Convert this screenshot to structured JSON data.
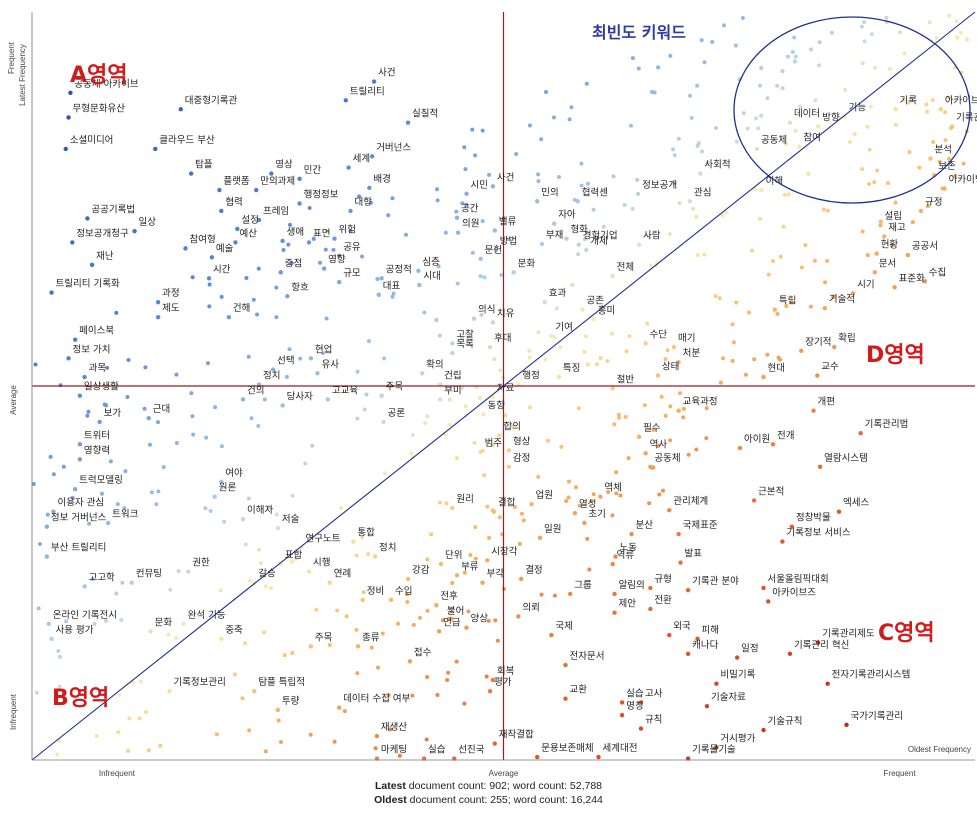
{
  "chart_data": {
    "type": "scatter",
    "axis_labels": {
      "y_top": "Frequent",
      "y_latest": "Latest Frequency",
      "y_mid": "Average",
      "y_bottom": "Infrequent",
      "x_left": "Infrequent",
      "x_mid": "Average",
      "x_right": "Frequent",
      "x_title": "Oldest Frequency"
    },
    "scale": {
      "x_levels": [
        "Infrequent",
        "Average",
        "Frequent"
      ],
      "y_levels": [
        "Infrequent",
        "Average",
        "Frequent"
      ]
    },
    "regions": {
      "A": "A영역",
      "B": "B영역",
      "C": "C영역",
      "D": "D영역",
      "top_keywords": "최빈도 키워드"
    },
    "colors": {
      "axis": "#9b1c1c",
      "diagonal": "#1f2f8f",
      "region_label": "#d11a1a",
      "top_label": "#2a3aa8",
      "circle": "#1f2f8f"
    },
    "words": [
      {
        "t": "기록",
        "x": 0.92,
        "y": 0.878
      },
      {
        "t": "아카이브",
        "x": 0.968,
        "y": 0.878
      },
      {
        "t": "기록관리",
        "x": 0.98,
        "y": 0.855
      },
      {
        "t": "기능",
        "x": 0.866,
        "y": 0.868
      },
      {
        "t": "방향",
        "x": 0.838,
        "y": 0.855
      },
      {
        "t": "데이터",
        "x": 0.808,
        "y": 0.86
      },
      {
        "t": "참여",
        "x": 0.818,
        "y": 0.828
      },
      {
        "t": "공동체",
        "x": 0.773,
        "y": 0.825
      },
      {
        "t": "이해",
        "x": 0.778,
        "y": 0.77
      },
      {
        "t": "분석",
        "x": 0.957,
        "y": 0.812
      },
      {
        "t": "보존",
        "x": 0.961,
        "y": 0.79
      },
      {
        "t": "아카이빙",
        "x": 0.972,
        "y": 0.772
      },
      {
        "t": "규정",
        "x": 0.947,
        "y": 0.742
      },
      {
        "t": "설립",
        "x": 0.904,
        "y": 0.723
      },
      {
        "t": "공공서",
        "x": 0.933,
        "y": 0.683
      },
      {
        "t": "수집",
        "x": 0.951,
        "y": 0.648
      },
      {
        "t": "사회적",
        "x": 0.713,
        "y": 0.792
      },
      {
        "t": "정보공개",
        "x": 0.647,
        "y": 0.765
      },
      {
        "t": "관심",
        "x": 0.702,
        "y": 0.755
      },
      {
        "t": "협력센",
        "x": 0.583,
        "y": 0.755
      },
      {
        "t": "경험기업",
        "x": 0.584,
        "y": 0.697
      },
      {
        "t": "사람",
        "x": 0.648,
        "y": 0.697
      },
      {
        "t": "자아",
        "x": 0.558,
        "y": 0.725
      },
      {
        "t": "형화",
        "x": 0.571,
        "y": 0.705
      },
      {
        "t": "부재",
        "x": 0.545,
        "y": 0.698
      },
      {
        "t": "개체",
        "x": 0.592,
        "y": 0.69
      },
      {
        "t": "전체",
        "x": 0.62,
        "y": 0.655
      },
      {
        "t": "효과",
        "x": 0.548,
        "y": 0.62
      },
      {
        "t": "공존",
        "x": 0.588,
        "y": 0.61
      },
      {
        "t": "흥미",
        "x": 0.6,
        "y": 0.597
      },
      {
        "t": "기여",
        "x": 0.555,
        "y": 0.575
      },
      {
        "t": "문화",
        "x": 0.515,
        "y": 0.66
      },
      {
        "t": "시민",
        "x": 0.465,
        "y": 0.765
      },
      {
        "t": "사건",
        "x": 0.493,
        "y": 0.775
      },
      {
        "t": "민의",
        "x": 0.54,
        "y": 0.755
      },
      {
        "t": "공간",
        "x": 0.455,
        "y": 0.733
      },
      {
        "t": "의원",
        "x": 0.456,
        "y": 0.713
      },
      {
        "t": "밸류",
        "x": 0.495,
        "y": 0.716
      },
      {
        "t": "방법",
        "x": 0.496,
        "y": 0.69
      },
      {
        "t": "문헌",
        "x": 0.48,
        "y": 0.678
      },
      {
        "t": "심층",
        "x": 0.414,
        "y": 0.662
      },
      {
        "t": "시대",
        "x": 0.415,
        "y": 0.643
      },
      {
        "t": "의식",
        "x": 0.473,
        "y": 0.598
      },
      {
        "t": "고찰",
        "x": 0.45,
        "y": 0.565
      },
      {
        "t": "목록",
        "x": 0.45,
        "y": 0.552
      },
      {
        "t": "치유",
        "x": 0.493,
        "y": 0.593
      },
      {
        "t": "후대",
        "x": 0.49,
        "y": 0.56
      },
      {
        "t": "동향",
        "x": 0.483,
        "y": 0.47
      },
      {
        "t": "사건",
        "x": 0.367,
        "y": 0.915
      },
      {
        "t": "트릴리티",
        "x": 0.337,
        "y": 0.89
      },
      {
        "t": "실질적",
        "x": 0.403,
        "y": 0.86
      },
      {
        "t": "거버넌스",
        "x": 0.365,
        "y": 0.815
      },
      {
        "t": "세계",
        "x": 0.34,
        "y": 0.8
      },
      {
        "t": "배경",
        "x": 0.362,
        "y": 0.773
      },
      {
        "t": "대항",
        "x": 0.342,
        "y": 0.742
      },
      {
        "t": "영상",
        "x": 0.258,
        "y": 0.792
      },
      {
        "t": "민간",
        "x": 0.288,
        "y": 0.785
      },
      {
        "t": "만의과제",
        "x": 0.242,
        "y": 0.77
      },
      {
        "t": "행정정보",
        "x": 0.288,
        "y": 0.752
      },
      {
        "t": "프레임",
        "x": 0.245,
        "y": 0.73
      },
      {
        "t": "표면",
        "x": 0.298,
        "y": 0.7
      },
      {
        "t": "공유",
        "x": 0.33,
        "y": 0.682
      },
      {
        "t": "영향",
        "x": 0.314,
        "y": 0.665
      },
      {
        "t": "규모",
        "x": 0.33,
        "y": 0.647
      },
      {
        "t": "대표",
        "x": 0.372,
        "y": 0.63
      },
      {
        "t": "공정적",
        "x": 0.375,
        "y": 0.652
      },
      {
        "t": "위험",
        "x": 0.325,
        "y": 0.705
      },
      {
        "t": "생애",
        "x": 0.27,
        "y": 0.702
      },
      {
        "t": "중점",
        "x": 0.268,
        "y": 0.66
      },
      {
        "t": "항흐",
        "x": 0.275,
        "y": 0.628
      },
      {
        "t": "현업",
        "x": 0.3,
        "y": 0.545
      },
      {
        "t": "협력",
        "x": 0.205,
        "y": 0.742
      },
      {
        "t": "설정",
        "x": 0.222,
        "y": 0.718
      },
      {
        "t": "예산",
        "x": 0.22,
        "y": 0.7
      },
      {
        "t": "예술",
        "x": 0.195,
        "y": 0.68
      },
      {
        "t": "시간",
        "x": 0.192,
        "y": 0.652
      },
      {
        "t": "건해",
        "x": 0.213,
        "y": 0.6
      },
      {
        "t": "공공기록법",
        "x": 0.063,
        "y": 0.732
      },
      {
        "t": "일상",
        "x": 0.113,
        "y": 0.715
      },
      {
        "t": "참여형",
        "x": 0.167,
        "y": 0.692
      },
      {
        "t": "정보공개청구",
        "x": 0.047,
        "y": 0.7
      },
      {
        "t": "재난",
        "x": 0.068,
        "y": 0.67
      },
      {
        "t": "트릴리티 기록화",
        "x": 0.025,
        "y": 0.633
      },
      {
        "t": "과정",
        "x": 0.138,
        "y": 0.62
      },
      {
        "t": "제도",
        "x": 0.138,
        "y": 0.6
      },
      {
        "t": "페이스북",
        "x": 0.05,
        "y": 0.57
      },
      {
        "t": "정보 가치",
        "x": 0.043,
        "y": 0.545
      },
      {
        "t": "과목",
        "x": 0.06,
        "y": 0.52
      },
      {
        "t": "일상생활",
        "x": 0.055,
        "y": 0.495
      },
      {
        "t": "공동체 아카이브",
        "x": 0.045,
        "y": 0.9
      },
      {
        "t": "무형문화유산",
        "x": 0.043,
        "y": 0.867
      },
      {
        "t": "소셜미디어",
        "x": 0.04,
        "y": 0.825
      },
      {
        "t": "클라우드 부산",
        "x": 0.135,
        "y": 0.825
      },
      {
        "t": "대중형기록관",
        "x": 0.162,
        "y": 0.878
      },
      {
        "t": "탐플",
        "x": 0.173,
        "y": 0.792
      },
      {
        "t": "플랫폼",
        "x": 0.203,
        "y": 0.77
      },
      {
        "t": "선택",
        "x": 0.26,
        "y": 0.53
      },
      {
        "t": "유사",
        "x": 0.307,
        "y": 0.525
      },
      {
        "t": "정치",
        "x": 0.245,
        "y": 0.51
      },
      {
        "t": "건의",
        "x": 0.228,
        "y": 0.49
      },
      {
        "t": "당사자",
        "x": 0.27,
        "y": 0.482
      },
      {
        "t": "고교육",
        "x": 0.318,
        "y": 0.49
      },
      {
        "t": "주목",
        "x": 0.375,
        "y": 0.495
      },
      {
        "t": "공론",
        "x": 0.377,
        "y": 0.46
      },
      {
        "t": "확의",
        "x": 0.418,
        "y": 0.525
      },
      {
        "t": "건립",
        "x": 0.437,
        "y": 0.51
      },
      {
        "t": "부미",
        "x": 0.437,
        "y": 0.49
      },
      {
        "t": "보가",
        "x": 0.076,
        "y": 0.46
      },
      {
        "t": "근대",
        "x": 0.128,
        "y": 0.465
      },
      {
        "t": "자료",
        "x": 0.493,
        "y": 0.493
      },
      {
        "t": "행정",
        "x": 0.52,
        "y": 0.51
      },
      {
        "t": "특징",
        "x": 0.563,
        "y": 0.52
      },
      {
        "t": "수단",
        "x": 0.655,
        "y": 0.565
      },
      {
        "t": "매기",
        "x": 0.685,
        "y": 0.56
      },
      {
        "t": "처분",
        "x": 0.69,
        "y": 0.54
      },
      {
        "t": "상태",
        "x": 0.668,
        "y": 0.522
      },
      {
        "t": "절반",
        "x": 0.62,
        "y": 0.505
      },
      {
        "t": "교육과정",
        "x": 0.69,
        "y": 0.475
      },
      {
        "t": "현대",
        "x": 0.78,
        "y": 0.52
      },
      {
        "t": "교수",
        "x": 0.837,
        "y": 0.522
      },
      {
        "t": "장기적",
        "x": 0.82,
        "y": 0.555
      },
      {
        "t": "확립",
        "x": 0.855,
        "y": 0.56
      },
      {
        "t": "개편",
        "x": 0.833,
        "y": 0.475
      },
      {
        "t": "기록관리법",
        "x": 0.883,
        "y": 0.445
      },
      {
        "t": "특립",
        "x": 0.792,
        "y": 0.61
      },
      {
        "t": "기술적",
        "x": 0.845,
        "y": 0.612
      },
      {
        "t": "시기",
        "x": 0.875,
        "y": 0.632
      },
      {
        "t": "표준화",
        "x": 0.919,
        "y": 0.64
      },
      {
        "t": "현황",
        "x": 0.9,
        "y": 0.685
      },
      {
        "t": "재고",
        "x": 0.908,
        "y": 0.708
      },
      {
        "t": "문서",
        "x": 0.898,
        "y": 0.66
      },
      {
        "t": "아이원",
        "x": 0.755,
        "y": 0.425
      },
      {
        "t": "전개",
        "x": 0.79,
        "y": 0.43
      },
      {
        "t": "열람시스템",
        "x": 0.84,
        "y": 0.4
      },
      {
        "t": "필수",
        "x": 0.648,
        "y": 0.44
      },
      {
        "t": "역사",
        "x": 0.655,
        "y": 0.418
      },
      {
        "t": "공동체",
        "x": 0.66,
        "y": 0.4
      },
      {
        "t": "합의",
        "x": 0.5,
        "y": 0.442
      },
      {
        "t": "형상",
        "x": 0.51,
        "y": 0.422
      },
      {
        "t": "감정",
        "x": 0.51,
        "y": 0.4
      },
      {
        "t": "범주",
        "x": 0.48,
        "y": 0.42
      },
      {
        "t": "원리",
        "x": 0.45,
        "y": 0.345
      },
      {
        "t": "결합",
        "x": 0.494,
        "y": 0.34
      },
      {
        "t": "업원",
        "x": 0.534,
        "y": 0.35
      },
      {
        "t": "열성",
        "x": 0.58,
        "y": 0.338
      },
      {
        "t": "초기",
        "x": 0.59,
        "y": 0.325
      },
      {
        "t": "역체",
        "x": 0.607,
        "y": 0.36
      },
      {
        "t": "관리체계",
        "x": 0.68,
        "y": 0.342
      },
      {
        "t": "근본적",
        "x": 0.77,
        "y": 0.355
      },
      {
        "t": "엑세스",
        "x": 0.86,
        "y": 0.34
      },
      {
        "t": "정창박물",
        "x": 0.81,
        "y": 0.32
      },
      {
        "t": "기록정보 서비스",
        "x": 0.8,
        "y": 0.3
      },
      {
        "t": "국제표준",
        "x": 0.69,
        "y": 0.31
      },
      {
        "t": "분산",
        "x": 0.64,
        "y": 0.31
      },
      {
        "t": "일원",
        "x": 0.543,
        "y": 0.305
      },
      {
        "t": "노동",
        "x": 0.623,
        "y": 0.28
      },
      {
        "t": "발표",
        "x": 0.692,
        "y": 0.272
      },
      {
        "t": "역류",
        "x": 0.62,
        "y": 0.27
      },
      {
        "t": "규형",
        "x": 0.66,
        "y": 0.238
      },
      {
        "t": "기록관 분야",
        "x": 0.7,
        "y": 0.235
      },
      {
        "t": "서울올림픽대회",
        "x": 0.78,
        "y": 0.238
      },
      {
        "t": "아카이브즈",
        "x": 0.785,
        "y": 0.22
      },
      {
        "t": "여야",
        "x": 0.205,
        "y": 0.38
      },
      {
        "t": "원론",
        "x": 0.198,
        "y": 0.36
      },
      {
        "t": "이해자",
        "x": 0.228,
        "y": 0.33
      },
      {
        "t": "저술",
        "x": 0.265,
        "y": 0.318
      },
      {
        "t": "연구노트",
        "x": 0.29,
        "y": 0.292
      },
      {
        "t": "통합",
        "x": 0.345,
        "y": 0.3
      },
      {
        "t": "정치",
        "x": 0.368,
        "y": 0.28
      },
      {
        "t": "표합",
        "x": 0.268,
        "y": 0.27
      },
      {
        "t": "시행",
        "x": 0.298,
        "y": 0.26
      },
      {
        "t": "연례",
        "x": 0.32,
        "y": 0.245
      },
      {
        "t": "갈승",
        "x": 0.24,
        "y": 0.245
      },
      {
        "t": "강감",
        "x": 0.403,
        "y": 0.25
      },
      {
        "t": "단위",
        "x": 0.438,
        "y": 0.27
      },
      {
        "t": "부류",
        "x": 0.455,
        "y": 0.255
      },
      {
        "t": "시장각",
        "x": 0.487,
        "y": 0.275
      },
      {
        "t": "결정",
        "x": 0.523,
        "y": 0.25
      },
      {
        "t": "부각",
        "x": 0.482,
        "y": 0.245
      },
      {
        "t": "정비",
        "x": 0.355,
        "y": 0.222
      },
      {
        "t": "수입",
        "x": 0.385,
        "y": 0.222
      },
      {
        "t": "전후",
        "x": 0.433,
        "y": 0.215
      },
      {
        "t": "불어",
        "x": 0.44,
        "y": 0.195
      },
      {
        "t": "언급",
        "x": 0.436,
        "y": 0.18
      },
      {
        "t": "양상",
        "x": 0.465,
        "y": 0.185
      },
      {
        "t": "의뢰",
        "x": 0.52,
        "y": 0.2
      },
      {
        "t": "국제",
        "x": 0.555,
        "y": 0.175
      },
      {
        "t": "그룹",
        "x": 0.575,
        "y": 0.23
      },
      {
        "t": "알림의",
        "x": 0.622,
        "y": 0.23
      },
      {
        "t": "제안",
        "x": 0.622,
        "y": 0.205
      },
      {
        "t": "전환",
        "x": 0.66,
        "y": 0.21
      },
      {
        "t": "전자문서",
        "x": 0.57,
        "y": 0.135
      },
      {
        "t": "외국",
        "x": 0.68,
        "y": 0.175
      },
      {
        "t": "피해",
        "x": 0.71,
        "y": 0.17
      },
      {
        "t": "캐나다",
        "x": 0.7,
        "y": 0.15
      },
      {
        "t": "일정",
        "x": 0.752,
        "y": 0.145
      },
      {
        "t": "기록관리 혁신",
        "x": 0.808,
        "y": 0.15
      },
      {
        "t": "기록관리제도",
        "x": 0.838,
        "y": 0.165
      },
      {
        "t": "비밀기록",
        "x": 0.73,
        "y": 0.11
      },
      {
        "t": "기술자료",
        "x": 0.72,
        "y": 0.08
      },
      {
        "t": "전자기록관리시스템",
        "x": 0.848,
        "y": 0.11
      },
      {
        "t": "국가기록관리",
        "x": 0.868,
        "y": 0.055
      },
      {
        "t": "기술규칙",
        "x": 0.78,
        "y": 0.048
      },
      {
        "t": "거시평가",
        "x": 0.73,
        "y": 0.025
      },
      {
        "t": "기록물기술",
        "x": 0.7,
        "y": 0.01
      },
      {
        "t": "세계대전",
        "x": 0.605,
        "y": 0.012
      },
      {
        "t": "문용보존매체",
        "x": 0.54,
        "y": 0.012
      },
      {
        "t": "재작결합",
        "x": 0.495,
        "y": 0.03
      },
      {
        "t": "교환",
        "x": 0.57,
        "y": 0.09
      },
      {
        "t": "회복",
        "x": 0.493,
        "y": 0.115
      },
      {
        "t": "평가",
        "x": 0.49,
        "y": 0.1
      },
      {
        "t": "실습",
        "x": 0.63,
        "y": 0.085
      },
      {
        "t": "고사",
        "x": 0.65,
        "y": 0.085
      },
      {
        "t": "명칭",
        "x": 0.63,
        "y": 0.068
      },
      {
        "t": "규칙",
        "x": 0.65,
        "y": 0.05
      },
      {
        "t": "접수",
        "x": 0.405,
        "y": 0.14
      },
      {
        "t": "주목",
        "x": 0.3,
        "y": 0.16
      },
      {
        "t": "종류",
        "x": 0.35,
        "y": 0.16
      },
      {
        "t": "데이터 수집 여부",
        "x": 0.33,
        "y": 0.078
      },
      {
        "t": "투량",
        "x": 0.265,
        "y": 0.075
      },
      {
        "t": "재생산",
        "x": 0.37,
        "y": 0.04
      },
      {
        "t": "마케팅",
        "x": 0.37,
        "y": 0.01
      },
      {
        "t": "실습",
        "x": 0.42,
        "y": 0.01
      },
      {
        "t": "선진국",
        "x": 0.452,
        "y": 0.01
      },
      {
        "t": "탐플 특립적",
        "x": 0.24,
        "y": 0.1
      },
      {
        "t": "기록정보관리",
        "x": 0.15,
        "y": 0.1
      },
      {
        "t": "중축",
        "x": 0.205,
        "y": 0.17
      },
      {
        "t": "완석 기능",
        "x": 0.165,
        "y": 0.19
      },
      {
        "t": "문화",
        "x": 0.13,
        "y": 0.18
      },
      {
        "t": "컨뮤팅",
        "x": 0.11,
        "y": 0.245
      },
      {
        "t": "권한",
        "x": 0.17,
        "y": 0.26
      },
      {
        "t": "고고학",
        "x": 0.06,
        "y": 0.24
      },
      {
        "t": "온라인 기록전시",
        "x": 0.022,
        "y": 0.19
      },
      {
        "t": "사용 평가",
        "x": 0.025,
        "y": 0.17
      },
      {
        "t": "부산 트릴리티",
        "x": 0.02,
        "y": 0.28
      },
      {
        "t": "정보 거버넌스",
        "x": 0.02,
        "y": 0.32
      },
      {
        "t": "이용자 관심",
        "x": 0.027,
        "y": 0.34
      },
      {
        "t": "트워크",
        "x": 0.085,
        "y": 0.325
      },
      {
        "t": "트럭모델링",
        "x": 0.05,
        "y": 0.37
      },
      {
        "t": "영향력",
        "x": 0.055,
        "y": 0.41
      },
      {
        "t": "트위터",
        "x": 0.055,
        "y": 0.43
      }
    ],
    "footer": [
      {
        "bold": "Latest",
        "text": " document count: 902; word count: 52,788"
      },
      {
        "bold": "Oldest",
        "text": " document count: 255; word count: 16,244"
      }
    ]
  }
}
